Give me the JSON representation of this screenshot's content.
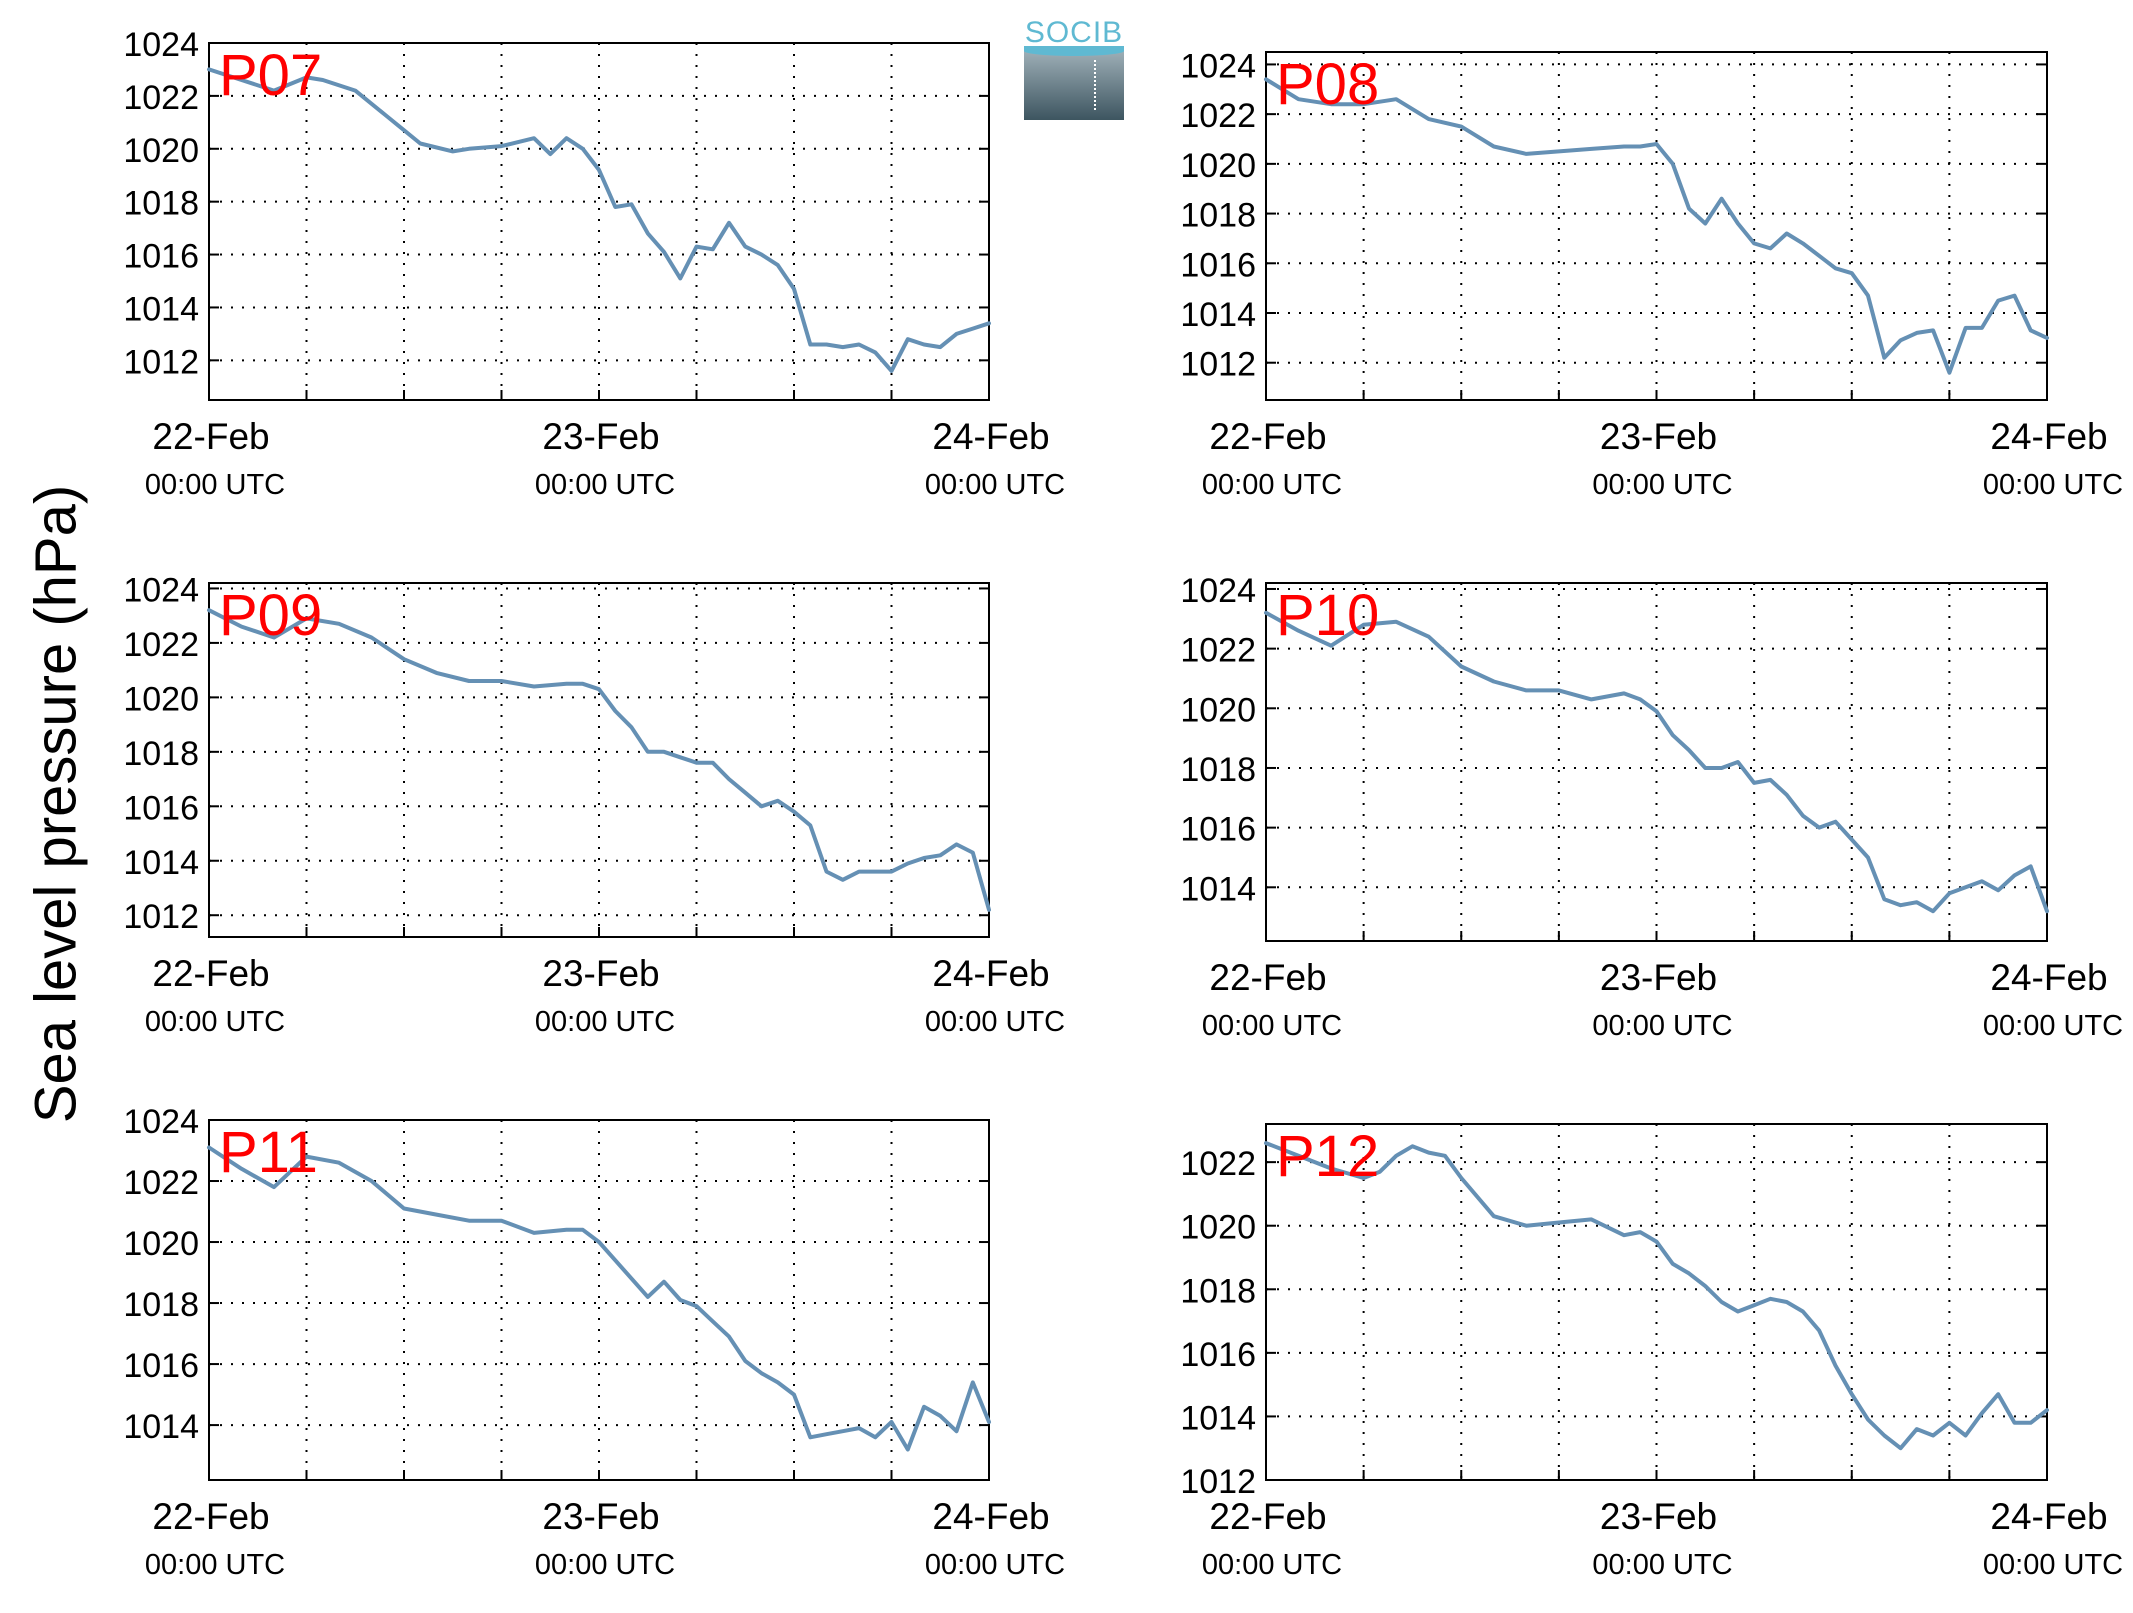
{
  "figure": {
    "ylabel": "Sea level pressure (hPa)",
    "logo_text": "SOCIB",
    "line_color": "#6590b4",
    "panel_label_color": "#ff0000"
  },
  "chart_data": [
    {
      "type": "line",
      "panel_label": "P07",
      "ylabel": "Sea level pressure (hPa)",
      "ylim": [
        1010.5,
        1024
      ],
      "yticks": [
        1012,
        1014,
        1016,
        1018,
        1020,
        1022,
        1024
      ],
      "xlim": [
        0,
        48
      ],
      "xticks": [
        {
          "x": 0,
          "label": "22-Feb",
          "sub": "00:00 UTC"
        },
        {
          "x": 24,
          "label": "23-Feb",
          "sub": "00:00 UTC"
        },
        {
          "x": 48,
          "label": "24-Feb",
          "sub": "00:00 UTC"
        }
      ],
      "x_units": "hours since 22-Feb 00:00 UTC",
      "grid": true,
      "series": [
        {
          "x": [
            0,
            2,
            4,
            6,
            7,
            9,
            11,
            13,
            15,
            16,
            18,
            20,
            21,
            22,
            23,
            24,
            25,
            26,
            27,
            28,
            29,
            30,
            31,
            32,
            33,
            34,
            35,
            36,
            37,
            38,
            39,
            40,
            41,
            42,
            43,
            44,
            45,
            46,
            47,
            48
          ],
          "y": [
            1023.0,
            1022.6,
            1022.2,
            1022.7,
            1022.6,
            1022.2,
            1021.2,
            1020.2,
            1019.9,
            1020.0,
            1020.1,
            1020.4,
            1019.8,
            1020.4,
            1020.0,
            1019.2,
            1017.8,
            1017.9,
            1016.8,
            1016.1,
            1015.1,
            1016.3,
            1016.2,
            1017.2,
            1016.3,
            1016.0,
            1015.6,
            1014.7,
            1012.6,
            1012.6,
            1012.5,
            1012.6,
            1012.3,
            1011.6,
            1012.8,
            1012.6,
            1012.5,
            1013.0,
            1013.2,
            1013.4
          ]
        }
      ]
    },
    {
      "type": "line",
      "panel_label": "P08",
      "ylim": [
        1010.5,
        1024.5
      ],
      "yticks": [
        1012,
        1014,
        1016,
        1018,
        1020,
        1022,
        1024
      ],
      "xlim": [
        0,
        48
      ],
      "xticks": [
        {
          "x": 0,
          "label": "22-Feb",
          "sub": "00:00 UTC"
        },
        {
          "x": 24,
          "label": "23-Feb",
          "sub": "00:00 UTC"
        },
        {
          "x": 48,
          "label": "24-Feb",
          "sub": "00:00 UTC"
        }
      ],
      "grid": true,
      "series": [
        {
          "x": [
            0,
            2,
            4,
            6,
            8,
            10,
            12,
            14,
            16,
            18,
            20,
            22,
            23,
            24,
            25,
            26,
            27,
            28,
            29,
            30,
            31,
            32,
            33,
            34,
            35,
            36,
            37,
            38,
            39,
            40,
            41,
            42,
            43,
            44,
            45,
            46,
            47,
            48
          ],
          "y": [
            1023.4,
            1022.6,
            1022.4,
            1022.4,
            1022.6,
            1021.8,
            1021.5,
            1020.7,
            1020.4,
            1020.5,
            1020.6,
            1020.7,
            1020.7,
            1020.8,
            1020.0,
            1018.2,
            1017.6,
            1018.6,
            1017.6,
            1016.8,
            1016.6,
            1017.2,
            1016.8,
            1016.3,
            1015.8,
            1015.6,
            1014.7,
            1012.2,
            1012.9,
            1013.2,
            1013.3,
            1011.6,
            1013.4,
            1013.4,
            1014.5,
            1014.7,
            1013.3,
            1013.0
          ]
        }
      ]
    },
    {
      "type": "line",
      "panel_label": "P09",
      "ylim": [
        1011.2,
        1024.2
      ],
      "yticks": [
        1012,
        1014,
        1016,
        1018,
        1020,
        1022,
        1024
      ],
      "xlim": [
        0,
        48
      ],
      "xticks": [
        {
          "x": 0,
          "label": "22-Feb",
          "sub": "00:00 UTC"
        },
        {
          "x": 24,
          "label": "23-Feb",
          "sub": "00:00 UTC"
        },
        {
          "x": 48,
          "label": "24-Feb",
          "sub": "00:00 UTC"
        }
      ],
      "grid": true,
      "series": [
        {
          "x": [
            0,
            2,
            4,
            6,
            8,
            10,
            12,
            14,
            16,
            18,
            20,
            22,
            23,
            24,
            25,
            26,
            27,
            28,
            29,
            30,
            31,
            32,
            33,
            34,
            35,
            36,
            37,
            38,
            39,
            40,
            41,
            42,
            43,
            44,
            45,
            46,
            47,
            48
          ],
          "y": [
            1023.2,
            1022.6,
            1022.2,
            1022.9,
            1022.7,
            1022.2,
            1021.4,
            1020.9,
            1020.6,
            1020.6,
            1020.4,
            1020.5,
            1020.5,
            1020.3,
            1019.5,
            1018.9,
            1018.0,
            1018.0,
            1017.8,
            1017.6,
            1017.6,
            1017.0,
            1016.5,
            1016.0,
            1016.2,
            1015.8,
            1015.3,
            1013.6,
            1013.3,
            1013.6,
            1013.6,
            1013.6,
            1013.9,
            1014.1,
            1014.2,
            1014.6,
            1014.3,
            1012.2
          ]
        }
      ]
    },
    {
      "type": "line",
      "panel_label": "P10",
      "ylim": [
        1012.2,
        1024.2
      ],
      "yticks": [
        1014,
        1016,
        1018,
        1020,
        1022,
        1024
      ],
      "xlim": [
        0,
        48
      ],
      "xticks": [
        {
          "x": 0,
          "label": "22-Feb",
          "sub": "00:00 UTC"
        },
        {
          "x": 24,
          "label": "23-Feb",
          "sub": "00:00 UTC"
        },
        {
          "x": 48,
          "label": "24-Feb",
          "sub": "00:00 UTC"
        }
      ],
      "grid": true,
      "series": [
        {
          "x": [
            0,
            2,
            4,
            6,
            8,
            10,
            12,
            14,
            16,
            18,
            20,
            22,
            23,
            24,
            25,
            26,
            27,
            28,
            29,
            30,
            31,
            32,
            33,
            34,
            35,
            36,
            37,
            38,
            39,
            40,
            41,
            42,
            43,
            44,
            45,
            46,
            47,
            48
          ],
          "y": [
            1023.2,
            1022.6,
            1022.1,
            1022.8,
            1022.9,
            1022.4,
            1021.4,
            1020.9,
            1020.6,
            1020.6,
            1020.3,
            1020.5,
            1020.3,
            1019.9,
            1019.1,
            1018.6,
            1018.0,
            1018.0,
            1018.2,
            1017.5,
            1017.6,
            1017.1,
            1016.4,
            1016.0,
            1016.2,
            1015.6,
            1015.0,
            1013.6,
            1013.4,
            1013.5,
            1013.2,
            1013.8,
            1014.0,
            1014.2,
            1013.9,
            1014.4,
            1014.7,
            1013.2
          ]
        }
      ]
    },
    {
      "type": "line",
      "panel_label": "P11",
      "ylim": [
        1012.2,
        1024
      ],
      "yticks": [
        1014,
        1016,
        1018,
        1020,
        1022,
        1024
      ],
      "xlim": [
        0,
        48
      ],
      "xticks": [
        {
          "x": 0,
          "label": "22-Feb",
          "sub": "00:00 UTC"
        },
        {
          "x": 24,
          "label": "23-Feb",
          "sub": "00:00 UTC"
        },
        {
          "x": 48,
          "label": "24-Feb",
          "sub": "00:00 UTC"
        }
      ],
      "grid": true,
      "series": [
        {
          "x": [
            0,
            2,
            4,
            6,
            8,
            10,
            12,
            14,
            16,
            18,
            20,
            22,
            23,
            24,
            25,
            26,
            27,
            28,
            29,
            30,
            31,
            32,
            33,
            34,
            35,
            36,
            37,
            38,
            39,
            40,
            41,
            42,
            43,
            44,
            45,
            46,
            47,
            48
          ],
          "y": [
            1023.1,
            1022.4,
            1021.8,
            1022.8,
            1022.6,
            1022.0,
            1021.1,
            1020.9,
            1020.7,
            1020.7,
            1020.3,
            1020.4,
            1020.4,
            1020.0,
            1019.4,
            1018.8,
            1018.2,
            1018.7,
            1018.1,
            1017.9,
            1017.4,
            1016.9,
            1016.1,
            1015.7,
            1015.4,
            1015.0,
            1013.6,
            1013.7,
            1013.8,
            1013.9,
            1013.6,
            1014.1,
            1013.2,
            1014.6,
            1014.3,
            1013.8,
            1015.4,
            1014.1
          ]
        }
      ]
    },
    {
      "type": "line",
      "panel_label": "P12",
      "ylim": [
        1012,
        1023.2
      ],
      "yticks": [
        1012,
        1014,
        1016,
        1018,
        1020,
        1022
      ],
      "xlim": [
        0,
        48
      ],
      "xticks": [
        {
          "x": 0,
          "label": "22-Feb",
          "sub": "00:00 UTC"
        },
        {
          "x": 24,
          "label": "23-Feb",
          "sub": "00:00 UTC"
        },
        {
          "x": 48,
          "label": "24-Feb",
          "sub": "00:00 UTC"
        }
      ],
      "grid": true,
      "series": [
        {
          "x": [
            0,
            2,
            4,
            6,
            7,
            8,
            9,
            10,
            11,
            12,
            14,
            16,
            18,
            20,
            22,
            23,
            24,
            25,
            26,
            27,
            28,
            29,
            30,
            31,
            32,
            33,
            34,
            35,
            36,
            37,
            38,
            39,
            40,
            41,
            42,
            43,
            44,
            45,
            46,
            47,
            48
          ],
          "y": [
            1022.6,
            1022.2,
            1021.8,
            1021.5,
            1021.7,
            1022.2,
            1022.5,
            1022.3,
            1022.2,
            1021.5,
            1020.3,
            1020.0,
            1020.1,
            1020.2,
            1019.7,
            1019.8,
            1019.5,
            1018.8,
            1018.5,
            1018.1,
            1017.6,
            1017.3,
            1017.5,
            1017.7,
            1017.6,
            1017.3,
            1016.7,
            1015.6,
            1014.7,
            1013.9,
            1013.4,
            1013.0,
            1013.6,
            1013.4,
            1013.8,
            1013.4,
            1014.1,
            1014.7,
            1013.8,
            1013.8,
            1014.2
          ]
        }
      ]
    }
  ]
}
